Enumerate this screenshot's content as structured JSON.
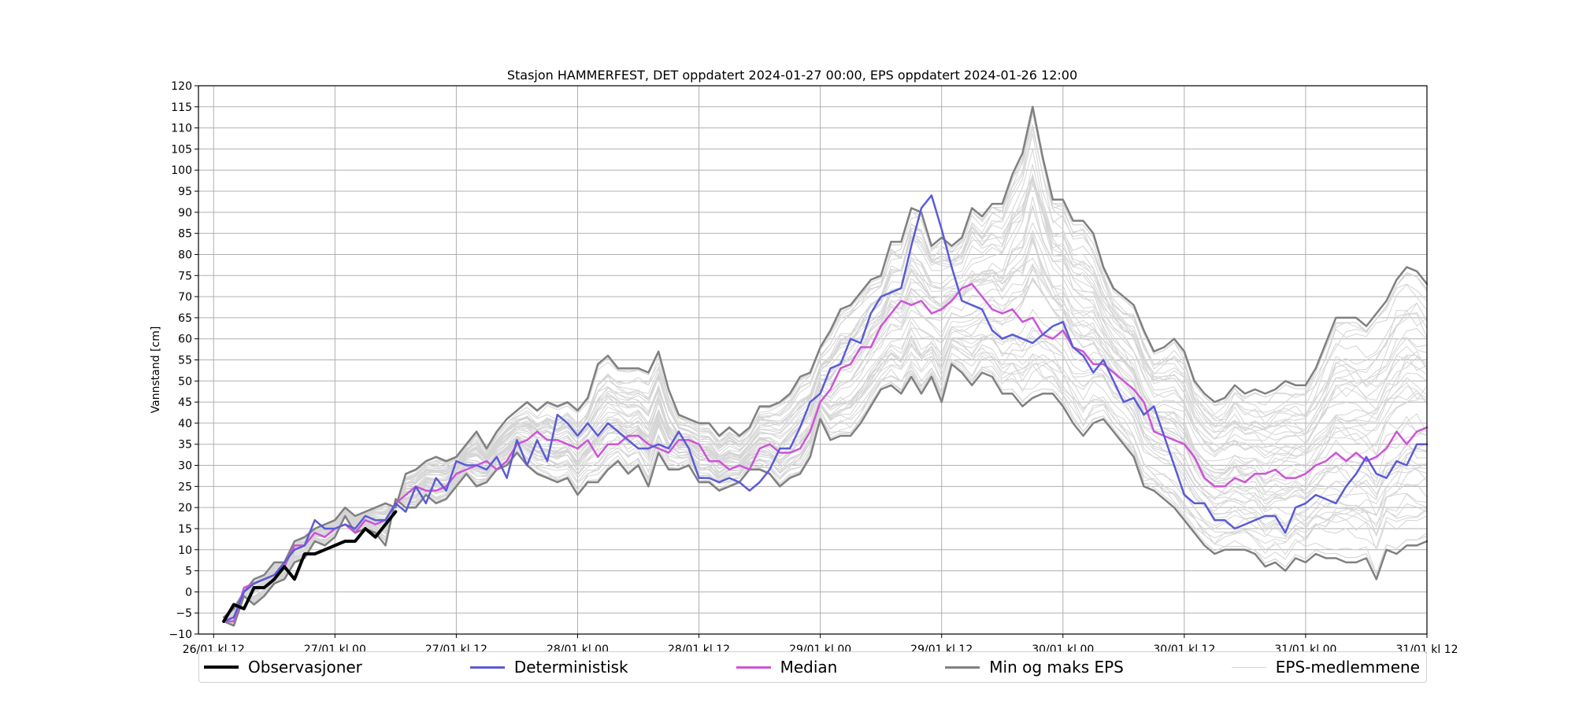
{
  "chart_data": {
    "type": "line",
    "title": "Stasjon HAMMERFEST, DET oppdatert 2024-01-27 00:00, EPS oppdatert 2024-01-26 12:00",
    "xlabel": "",
    "ylabel": "Vannstand [cm]",
    "x_unit": "hours since 26/01 kl 12",
    "xlim": [
      -1.5,
      120
    ],
    "ylim": [
      -10,
      120
    ],
    "grid": true,
    "legend_position": "bottom",
    "x_ticks": [
      {
        "value": 0,
        "label": "26/01 kl 12"
      },
      {
        "value": 12,
        "label": "27/01 kl 00"
      },
      {
        "value": 24,
        "label": "27/01 kl 12"
      },
      {
        "value": 36,
        "label": "28/01 kl 00"
      },
      {
        "value": 48,
        "label": "28/01 kl 12"
      },
      {
        "value": 60,
        "label": "29/01 kl 00"
      },
      {
        "value": 72,
        "label": "29/01 kl 12"
      },
      {
        "value": 84,
        "label": "30/01 kl 00"
      },
      {
        "value": 96,
        "label": "30/01 kl 12"
      },
      {
        "value": 108,
        "label": "31/01 kl 00"
      },
      {
        "value": 120,
        "label": "31/01 kl 12"
      }
    ],
    "y_ticks": [
      -10,
      -5,
      0,
      5,
      10,
      15,
      20,
      25,
      30,
      35,
      40,
      45,
      50,
      55,
      60,
      65,
      70,
      75,
      80,
      85,
      90,
      95,
      100,
      105,
      110,
      115,
      120
    ],
    "y_tick_labels": [
      "−10",
      "−5",
      "0",
      "5",
      "10",
      "15",
      "20",
      "25",
      "30",
      "35",
      "40",
      "45",
      "50",
      "55",
      "60",
      "65",
      "70",
      "75",
      "80",
      "85",
      "90",
      "95",
      "100",
      "105",
      "110",
      "115",
      "120"
    ],
    "series": [
      {
        "name": "Observasjoner",
        "color": "#000000",
        "width": 4,
        "x": [
          1,
          2,
          3,
          4,
          5,
          6,
          7,
          8,
          9,
          10,
          11,
          12,
          13,
          14,
          15,
          16,
          17,
          18
        ],
        "y": [
          -7,
          -3,
          -4,
          1,
          1,
          3,
          6,
          3,
          9,
          9,
          10,
          11,
          12,
          12,
          15,
          13,
          16,
          19
        ]
      },
      {
        "name": "Deterministisk",
        "color": "#5b5bd6",
        "width": 2.5,
        "x": [
          1,
          2,
          3,
          4,
          5,
          6,
          7,
          8,
          9,
          10,
          11,
          12,
          13,
          14,
          15,
          16,
          17,
          18,
          19,
          20,
          21,
          22,
          23,
          24,
          25,
          26,
          27,
          28,
          29,
          30,
          31,
          32,
          33,
          34,
          35,
          36,
          37,
          38,
          39,
          40,
          41,
          42,
          43,
          44,
          45,
          46,
          47,
          48,
          49,
          50,
          51,
          52,
          53,
          54,
          55,
          56,
          57,
          58,
          59,
          60,
          61,
          62,
          63,
          64,
          65,
          66,
          67,
          68,
          69,
          70,
          71,
          72,
          73,
          74,
          75,
          76,
          77,
          78,
          79,
          80,
          81,
          82,
          83,
          84,
          85,
          86,
          87,
          88,
          89,
          90,
          91,
          92,
          93,
          94,
          95,
          96,
          97,
          98,
          99,
          100,
          101,
          102,
          103,
          104,
          105,
          106,
          107,
          108,
          109,
          110,
          111,
          112,
          113,
          114,
          115,
          116,
          117,
          118,
          119,
          120
        ],
        "y": [
          -7,
          -6,
          0,
          2,
          3,
          4,
          7,
          10,
          11,
          17,
          15,
          15,
          16,
          15,
          18,
          17,
          17,
          21,
          19,
          25,
          21,
          27,
          24,
          31,
          30,
          30,
          29,
          32,
          27,
          36,
          30,
          36,
          31,
          42,
          40,
          37,
          40,
          37,
          40,
          38,
          36,
          34,
          34,
          35,
          34,
          38,
          34,
          27,
          27,
          26,
          27,
          26,
          24,
          26,
          29,
          34,
          34,
          39,
          45,
          47,
          53,
          54,
          60,
          59,
          66,
          70,
          71,
          72,
          82,
          91,
          94,
          86,
          77,
          69,
          68,
          67,
          62,
          60,
          61,
          60,
          59,
          61,
          63,
          64,
          58,
          56,
          52,
          55,
          50,
          45,
          46,
          42,
          44,
          37,
          30,
          23,
          21,
          21,
          17,
          17,
          15,
          16,
          17,
          18,
          18,
          14,
          20,
          21,
          23,
          22,
          21,
          25,
          28,
          32,
          28,
          27,
          31,
          30,
          35,
          35
        ]
      },
      {
        "name": "Median",
        "color": "#cc55d6",
        "width": 2.5,
        "x": [
          1,
          2,
          3,
          4,
          5,
          6,
          7,
          8,
          9,
          10,
          11,
          12,
          13,
          14,
          15,
          16,
          17,
          18,
          19,
          20,
          21,
          22,
          23,
          24,
          25,
          26,
          27,
          28,
          29,
          30,
          31,
          32,
          33,
          34,
          35,
          36,
          37,
          38,
          39,
          40,
          41,
          42,
          43,
          44,
          45,
          46,
          47,
          48,
          49,
          50,
          51,
          52,
          53,
          54,
          55,
          56,
          57,
          58,
          59,
          60,
          61,
          62,
          63,
          64,
          65,
          66,
          67,
          68,
          69,
          70,
          71,
          72,
          73,
          74,
          75,
          76,
          77,
          78,
          79,
          80,
          81,
          82,
          83,
          84,
          85,
          86,
          87,
          88,
          89,
          90,
          91,
          92,
          93,
          94,
          95,
          96,
          97,
          98,
          99,
          100,
          101,
          102,
          103,
          104,
          105,
          106,
          107,
          108,
          109,
          110,
          111,
          112,
          113,
          114,
          115,
          116,
          117,
          118,
          119,
          120
        ],
        "y": [
          -7,
          -7,
          1,
          2,
          3,
          4,
          6,
          11,
          11,
          14,
          13,
          15,
          16,
          14,
          17,
          16,
          17,
          21,
          23,
          25,
          24,
          24,
          25,
          28,
          29,
          30,
          31,
          29,
          31,
          35,
          36,
          38,
          36,
          36,
          35,
          34,
          36,
          32,
          35,
          35,
          37,
          37,
          35,
          34,
          33,
          36,
          36,
          35,
          31,
          31,
          29,
          30,
          29,
          34,
          35,
          33,
          33,
          34,
          38,
          45,
          48,
          53,
          54,
          58,
          58,
          63,
          66,
          69,
          68,
          69,
          66,
          67,
          69,
          72,
          73,
          70,
          67,
          66,
          67,
          64,
          65,
          61,
          60,
          62,
          58,
          57,
          54,
          54,
          52,
          50,
          48,
          45,
          38,
          37,
          36,
          35,
          32,
          27,
          25,
          25,
          27,
          26,
          28,
          28,
          29,
          27,
          27,
          28,
          30,
          31,
          33,
          31,
          33,
          31,
          32,
          34,
          38,
          35,
          38,
          39
        ]
      },
      {
        "name": "Min og maks EPS",
        "color": "#808080",
        "width": 2.5,
        "x": [
          1,
          2,
          3,
          4,
          5,
          6,
          7,
          8,
          9,
          10,
          11,
          12,
          13,
          14,
          15,
          16,
          17,
          18,
          19,
          20,
          21,
          22,
          23,
          24,
          25,
          26,
          27,
          28,
          29,
          30,
          31,
          32,
          33,
          34,
          35,
          36,
          37,
          38,
          39,
          40,
          41,
          42,
          43,
          44,
          45,
          46,
          47,
          48,
          49,
          50,
          51,
          52,
          53,
          54,
          55,
          56,
          57,
          58,
          59,
          60,
          61,
          62,
          63,
          64,
          65,
          66,
          67,
          68,
          69,
          70,
          71,
          72,
          73,
          74,
          75,
          76,
          77,
          78,
          79,
          80,
          81,
          82,
          83,
          84,
          85,
          86,
          87,
          88,
          89,
          90,
          91,
          92,
          93,
          94,
          95,
          96,
          97,
          98,
          99,
          100,
          101,
          102,
          103,
          104,
          105,
          106,
          107,
          108,
          109,
          110,
          111,
          112,
          113,
          114,
          115,
          116,
          117,
          118,
          119,
          120
        ],
        "y": [
          -6,
          -4,
          0,
          3,
          4,
          7,
          7,
          12,
          13,
          15,
          16,
          17,
          20,
          18,
          19,
          20,
          21,
          20,
          28,
          29,
          31,
          32,
          31,
          32,
          35,
          38,
          34,
          38,
          41,
          43,
          45,
          43,
          45,
          44,
          45,
          43,
          46,
          54,
          56,
          53,
          53,
          53,
          52,
          57,
          48,
          42,
          41,
          40,
          40,
          37,
          39,
          37,
          39,
          44,
          44,
          45,
          47,
          51,
          52,
          58,
          62,
          67,
          68,
          71,
          74,
          75,
          83,
          83,
          91,
          90,
          82,
          84,
          82,
          84,
          91,
          89,
          92,
          92,
          99,
          104,
          115,
          103,
          93,
          93,
          88,
          88,
          85,
          77,
          72,
          70,
          68,
          62,
          57,
          58,
          60,
          57,
          50,
          47,
          45,
          46,
          49,
          47,
          48,
          47,
          48,
          50,
          49,
          49,
          53,
          59,
          65,
          65,
          65,
          63,
          66,
          69,
          74,
          77,
          76,
          73
        ]
      },
      {
        "name": "Min og maks EPS",
        "color": "#808080",
        "width": 2.5,
        "x": [
          1,
          2,
          3,
          4,
          5,
          6,
          7,
          8,
          9,
          10,
          11,
          12,
          13,
          14,
          15,
          16,
          17,
          18,
          19,
          20,
          21,
          22,
          23,
          24,
          25,
          26,
          27,
          28,
          29,
          30,
          31,
          32,
          33,
          34,
          35,
          36,
          37,
          38,
          39,
          40,
          41,
          42,
          43,
          44,
          45,
          46,
          47,
          48,
          49,
          50,
          51,
          52,
          53,
          54,
          55,
          56,
          57,
          58,
          59,
          60,
          61,
          62,
          63,
          64,
          65,
          66,
          67,
          68,
          69,
          70,
          71,
          72,
          73,
          74,
          75,
          76,
          77,
          78,
          79,
          80,
          81,
          82,
          83,
          84,
          85,
          86,
          87,
          88,
          89,
          90,
          91,
          92,
          93,
          94,
          95,
          96,
          97,
          98,
          99,
          100,
          101,
          102,
          103,
          104,
          105,
          106,
          107,
          108,
          109,
          110,
          111,
          112,
          113,
          114,
          115,
          116,
          117,
          118,
          119,
          120
        ],
        "y": [
          -7,
          -8,
          -1,
          -3,
          -1,
          2,
          3,
          7,
          8,
          12,
          11,
          13,
          18,
          14,
          15,
          14,
          11,
          22,
          20,
          20,
          23,
          21,
          22,
          25,
          28,
          25,
          26,
          29,
          30,
          33,
          30,
          28,
          27,
          26,
          27,
          23,
          26,
          26,
          29,
          31,
          28,
          30,
          25,
          33,
          29,
          29,
          30,
          26,
          26,
          24,
          25,
          26,
          29,
          29,
          28,
          25,
          27,
          28,
          32,
          41,
          36,
          37,
          37,
          40,
          44,
          48,
          49,
          47,
          51,
          47,
          51,
          45,
          54,
          52,
          49,
          52,
          51,
          47,
          47,
          44,
          46,
          47,
          47,
          44,
          40,
          37,
          40,
          41,
          38,
          35,
          32,
          25,
          24,
          22,
          20,
          17,
          14,
          11,
          9,
          10,
          10,
          10,
          9,
          6,
          7,
          5,
          8,
          7,
          9,
          8,
          8,
          7,
          7,
          8,
          3,
          10,
          9,
          11,
          11,
          12
        ]
      }
    ],
    "ensemble": {
      "name": "EPS-medlemmene",
      "color": "#d5d5d5",
      "member_count": 51
    }
  },
  "legend": {
    "observations_label": "Observasjoner",
    "deterministic_label": "Deterministisk",
    "median_label": "Median",
    "minmax_label": "Min og maks EPS",
    "members_label": "EPS-medlemmene"
  }
}
